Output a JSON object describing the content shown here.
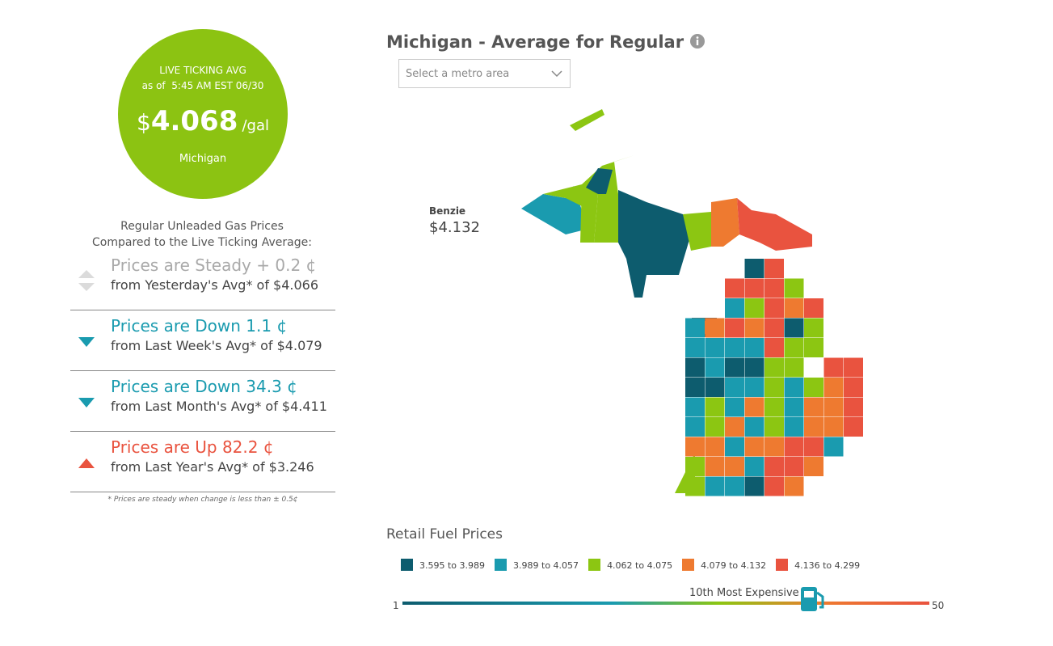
{
  "summary": {
    "heading": "LIVE TICKING AVG",
    "as_of": "as of  5:45 AM EST 06/30",
    "currency": "$",
    "price": "4.068",
    "unit": "/gal",
    "region": "Michigan",
    "color": "#8cc312"
  },
  "comparison": {
    "intro": "Regular Unleaded Gas Prices",
    "intro2": "Compared to the Live Ticking Average:",
    "items": [
      {
        "headline": "Prices are Steady + 0.2 ¢",
        "detail": "from Yesterday's Avg* of $4.066",
        "icon": "steady",
        "color": "#a9a9a9"
      },
      {
        "headline": "Prices are Down 1.1 ¢",
        "detail": "from Last Week's Avg* of $4.079",
        "icon": "down",
        "color": "#1a9baf"
      },
      {
        "headline": "Prices are Down 34.3 ¢",
        "detail": "from Last Month's Avg* of $4.411",
        "icon": "down",
        "color": "#1a9baf"
      },
      {
        "headline": "Prices are Up 82.2 ¢",
        "detail": "from Last Year's Avg* of $3.246",
        "icon": "up",
        "color": "#e9533f"
      }
    ],
    "footnote": "* Prices are steady when change is less than ± 0.5¢"
  },
  "map": {
    "title": "Michigan - Average for Regular",
    "select_placeholder": "Select a metro area",
    "tooltip": {
      "county": "Benzie",
      "price": "$4.132"
    }
  },
  "legend": {
    "title": "Retail Fuel Prices",
    "items": [
      {
        "label": "3.595 to 3.989",
        "color": "#0d5c6e"
      },
      {
        "label": "3.989 to 4.057",
        "color": "#1a9baf"
      },
      {
        "label": "4.062 to 4.075",
        "color": "#8cc612"
      },
      {
        "label": "4.079 to 4.132",
        "color": "#ee7a30"
      },
      {
        "label": "4.136 to 4.299",
        "color": "#e9533f"
      }
    ]
  },
  "rank": {
    "min": 1,
    "max": 50,
    "label": "10th Most Expensive"
  }
}
